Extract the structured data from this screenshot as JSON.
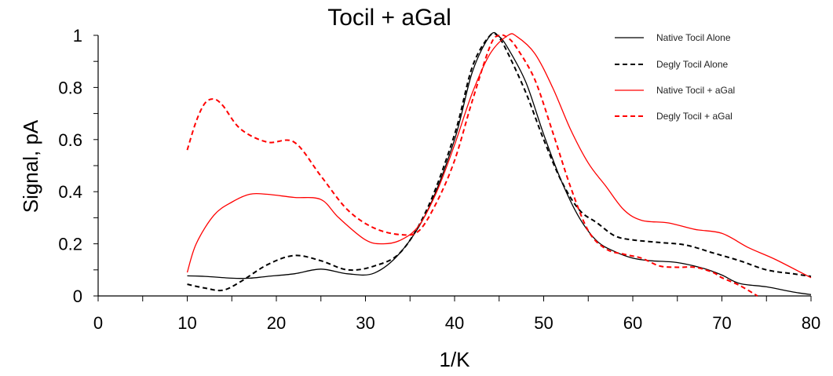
{
  "chart_data": {
    "type": "line",
    "title": "Tocil + aGal",
    "xlabel": "1/K",
    "ylabel": "Signal, pA",
    "xlim": [
      0,
      80
    ],
    "ylim": [
      0,
      1
    ],
    "x_ticks": [
      "0",
      "10",
      "20",
      "30",
      "40",
      "50",
      "60",
      "70",
      "80"
    ],
    "y_ticks": [
      "0",
      "0.2",
      "0.4",
      "0.6",
      "0.8",
      "1"
    ],
    "grid": false,
    "legend_position": "top-right",
    "series": [
      {
        "name": "Native Tocil Alone",
        "color": "#000000",
        "dash": "solid",
        "points": [
          [
            10,
            0.077
          ],
          [
            12,
            0.075
          ],
          [
            15,
            0.068
          ],
          [
            17,
            0.068
          ],
          [
            19,
            0.075
          ],
          [
            22,
            0.085
          ],
          [
            25,
            0.103
          ],
          [
            28,
            0.085
          ],
          [
            31,
            0.088
          ],
          [
            34,
            0.17
          ],
          [
            37,
            0.33
          ],
          [
            40,
            0.6
          ],
          [
            42,
            0.86
          ],
          [
            44,
            1.0
          ],
          [
            45,
            0.995
          ],
          [
            46,
            0.95
          ],
          [
            48,
            0.82
          ],
          [
            50,
            0.62
          ],
          [
            52,
            0.44
          ],
          [
            54,
            0.3
          ],
          [
            56,
            0.21
          ],
          [
            58,
            0.17
          ],
          [
            60,
            0.145
          ],
          [
            62,
            0.135
          ],
          [
            65,
            0.128
          ],
          [
            68,
            0.105
          ],
          [
            70,
            0.08
          ],
          [
            72,
            0.048
          ],
          [
            75,
            0.035
          ],
          [
            78,
            0.015
          ],
          [
            80,
            0.005
          ]
        ]
      },
      {
        "name": "Degly Tocil Alone",
        "color": "#000000",
        "dash": "dashed",
        "points": [
          [
            10,
            0.045
          ],
          [
            12,
            0.03
          ],
          [
            14,
            0.022
          ],
          [
            16,
            0.055
          ],
          [
            19,
            0.12
          ],
          [
            22,
            0.155
          ],
          [
            25,
            0.135
          ],
          [
            28,
            0.1
          ],
          [
            31,
            0.115
          ],
          [
            34,
            0.17
          ],
          [
            37,
            0.34
          ],
          [
            40,
            0.62
          ],
          [
            42,
            0.88
          ],
          [
            44,
            1.0
          ],
          [
            45,
            0.99
          ],
          [
            46,
            0.93
          ],
          [
            48,
            0.78
          ],
          [
            50,
            0.6
          ],
          [
            52,
            0.44
          ],
          [
            54,
            0.33
          ],
          [
            56,
            0.28
          ],
          [
            58,
            0.23
          ],
          [
            60,
            0.215
          ],
          [
            63,
            0.205
          ],
          [
            66,
            0.195
          ],
          [
            69,
            0.165
          ],
          [
            72,
            0.135
          ],
          [
            75,
            0.1
          ],
          [
            78,
            0.085
          ],
          [
            80,
            0.075
          ]
        ]
      },
      {
        "name": "Native Tocil + aGal",
        "color": "#ff0000",
        "dash": "solid",
        "points": [
          [
            10,
            0.09
          ],
          [
            11,
            0.2
          ],
          [
            13,
            0.31
          ],
          [
            15,
            0.36
          ],
          [
            17,
            0.39
          ],
          [
            19,
            0.39
          ],
          [
            22,
            0.378
          ],
          [
            25,
            0.37
          ],
          [
            27,
            0.3
          ],
          [
            30,
            0.215
          ],
          [
            32,
            0.2
          ],
          [
            34,
            0.215
          ],
          [
            36,
            0.27
          ],
          [
            38,
            0.4
          ],
          [
            40,
            0.58
          ],
          [
            42,
            0.78
          ],
          [
            44,
            0.93
          ],
          [
            46,
            1.0
          ],
          [
            47,
            0.995
          ],
          [
            49,
            0.93
          ],
          [
            51,
            0.8
          ],
          [
            53,
            0.64
          ],
          [
            55,
            0.51
          ],
          [
            57,
            0.42
          ],
          [
            59,
            0.33
          ],
          [
            61,
            0.29
          ],
          [
            64,
            0.28
          ],
          [
            67,
            0.255
          ],
          [
            70,
            0.24
          ],
          [
            73,
            0.185
          ],
          [
            76,
            0.14
          ],
          [
            80,
            0.07
          ]
        ]
      },
      {
        "name": "Degly Tocil + aGal",
        "color": "#ff0000",
        "dash": "dashed",
        "points": [
          [
            10,
            0.56
          ],
          [
            11,
            0.67
          ],
          [
            12,
            0.74
          ],
          [
            13,
            0.755
          ],
          [
            14,
            0.73
          ],
          [
            16,
            0.64
          ],
          [
            19,
            0.59
          ],
          [
            22,
            0.59
          ],
          [
            25,
            0.46
          ],
          [
            28,
            0.33
          ],
          [
            31,
            0.26
          ],
          [
            34,
            0.235
          ],
          [
            36,
            0.25
          ],
          [
            38,
            0.36
          ],
          [
            40,
            0.52
          ],
          [
            42,
            0.75
          ],
          [
            44,
            0.96
          ],
          [
            45,
            1.0
          ],
          [
            46,
            0.99
          ],
          [
            47,
            0.95
          ],
          [
            49,
            0.83
          ],
          [
            51,
            0.63
          ],
          [
            53,
            0.42
          ],
          [
            55,
            0.25
          ],
          [
            57,
            0.18
          ],
          [
            59,
            0.16
          ],
          [
            61,
            0.145
          ],
          [
            63,
            0.115
          ],
          [
            65,
            0.11
          ],
          [
            67,
            0.11
          ],
          [
            69,
            0.09
          ],
          [
            70,
            0.07
          ],
          [
            72,
            0.04
          ],
          [
            74,
            0.0
          ]
        ]
      }
    ]
  }
}
